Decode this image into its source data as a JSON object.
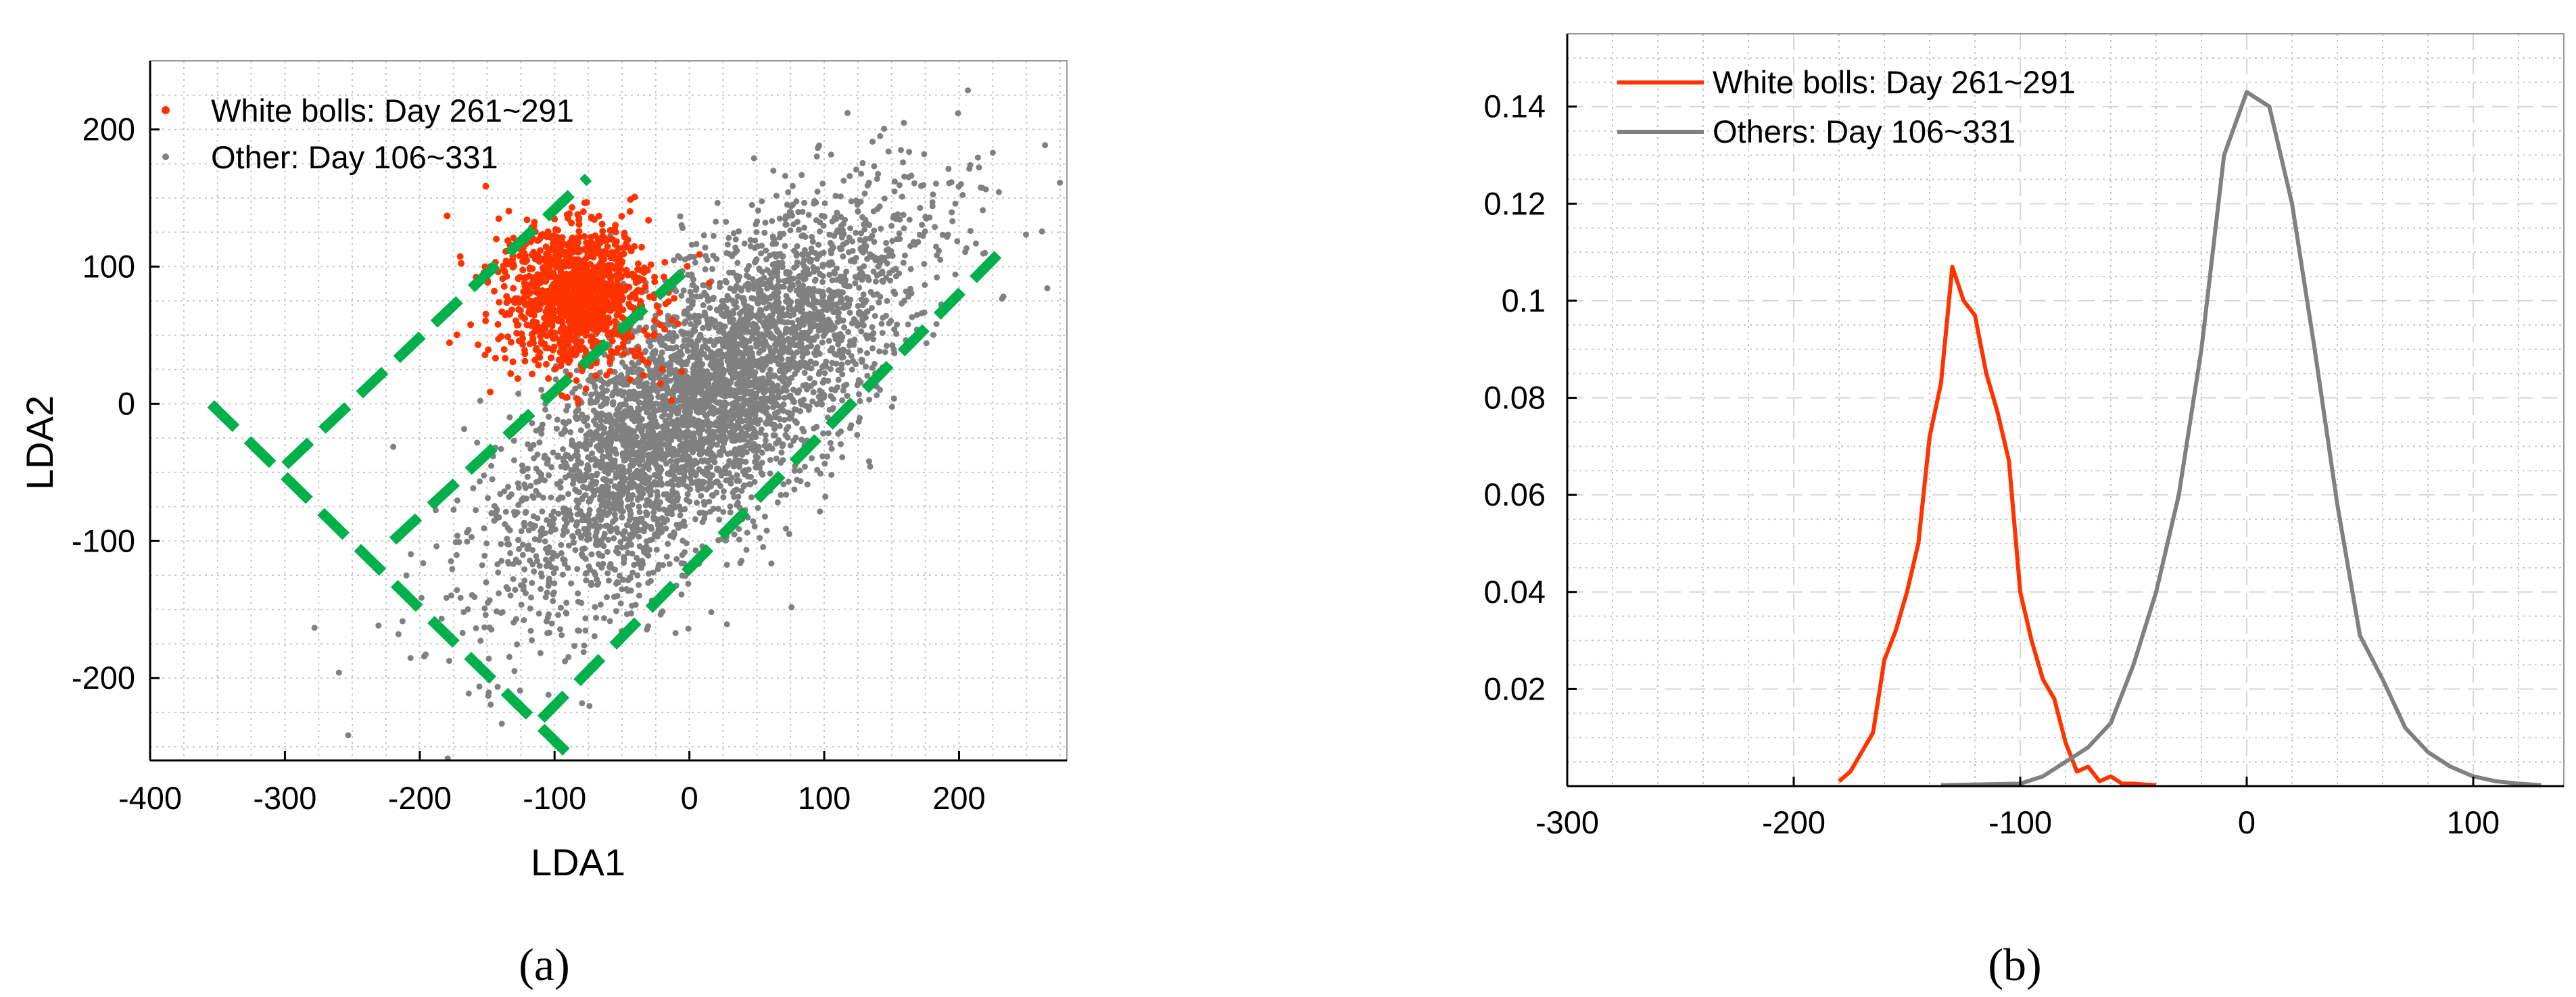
{
  "colors": {
    "white_bolls": "#ff3300",
    "other": "#808080",
    "boundary": "#00b04a"
  },
  "panel_a_label": "(a)",
  "panel_b_label": "(b)",
  "chart_data": [
    {
      "type": "scatter",
      "panel": "a",
      "xlabel": "LDA1",
      "ylabel": "LDA2",
      "xlim": [
        -400,
        280
      ],
      "ylim": [
        -260,
        250
      ],
      "xticks": [
        -400,
        -300,
        -200,
        -100,
        0,
        100,
        200
      ],
      "yticks": [
        -200,
        -100,
        0,
        100,
        200
      ],
      "legend": "top-left",
      "grid": true,
      "series": [
        {
          "name": "White bolls: Day 261~291",
          "color": "#ff3300",
          "n_points": 1200,
          "center": [
            -85,
            80
          ],
          "spread": [
            28,
            26
          ]
        },
        {
          "name": "Other: Day 106~331",
          "color": "#808080",
          "n_points": 4200,
          "center": [
            10,
            0
          ],
          "principal_axis_slope": 0.95,
          "spread_along": 95,
          "spread_across": 38
        }
      ],
      "boundaries": [
        {
          "style": "dashed",
          "points": [
            [
              -355,
              0
            ],
            [
              -85,
              -260
            ]
          ]
        },
        {
          "style": "dashed",
          "points": [
            [
              -300,
              -45
            ],
            [
              -75,
              165
            ]
          ]
        },
        {
          "style": "dashed",
          "points": [
            [
              -220,
              -100
            ],
            [
              0,
              100
            ]
          ]
        },
        {
          "style": "dashed",
          "points": [
            [
              -110,
              -230
            ],
            [
              235,
              115
            ]
          ]
        }
      ]
    },
    {
      "type": "line",
      "panel": "b",
      "xlim": [
        -300,
        140
      ],
      "ylim": [
        0,
        0.155
      ],
      "xticks": [
        -300,
        -200,
        -100,
        0,
        100
      ],
      "yticks": [
        0.02,
        0.04,
        0.06,
        0.08,
        0.1,
        0.12,
        0.14
      ],
      "ytick_labels": [
        "0.02",
        "0.04",
        "0.06",
        "0.08",
        "0.1",
        "0.12",
        "0.14"
      ],
      "legend": "top-left",
      "grid": true,
      "series": [
        {
          "name": "White bolls: Day 261~291",
          "color": "#ff3300",
          "x": [
            -180,
            -175,
            -170,
            -165,
            -160,
            -155,
            -150,
            -145,
            -140,
            -135,
            -130,
            -125,
            -120,
            -115,
            -110,
            -105,
            -100,
            -95,
            -90,
            -85,
            -80,
            -75,
            -70,
            -65,
            -60,
            -55,
            -50,
            -45,
            -40
          ],
          "y": [
            0.001,
            0.003,
            0.007,
            0.011,
            0.026,
            0.032,
            0.04,
            0.05,
            0.072,
            0.083,
            0.107,
            0.1,
            0.097,
            0.085,
            0.077,
            0.067,
            0.04,
            0.03,
            0.022,
            0.018,
            0.009,
            0.003,
            0.004,
            0.001,
            0.002,
            0.0005,
            0.0005,
            0.0003,
            0.0002
          ]
        },
        {
          "name": "Others: Day 106~331",
          "color": "#808080",
          "x": [
            -135,
            -100,
            -90,
            -80,
            -70,
            -60,
            -50,
            -40,
            -30,
            -20,
            -10,
            0,
            10,
            20,
            30,
            40,
            50,
            60,
            70,
            80,
            90,
            100,
            110,
            120,
            130
          ],
          "y": [
            0.0002,
            0.0005,
            0.002,
            0.005,
            0.008,
            0.013,
            0.025,
            0.04,
            0.06,
            0.09,
            0.13,
            0.143,
            0.14,
            0.12,
            0.09,
            0.058,
            0.031,
            0.022,
            0.012,
            0.007,
            0.004,
            0.002,
            0.001,
            0.0005,
            0.0002
          ]
        }
      ]
    }
  ]
}
